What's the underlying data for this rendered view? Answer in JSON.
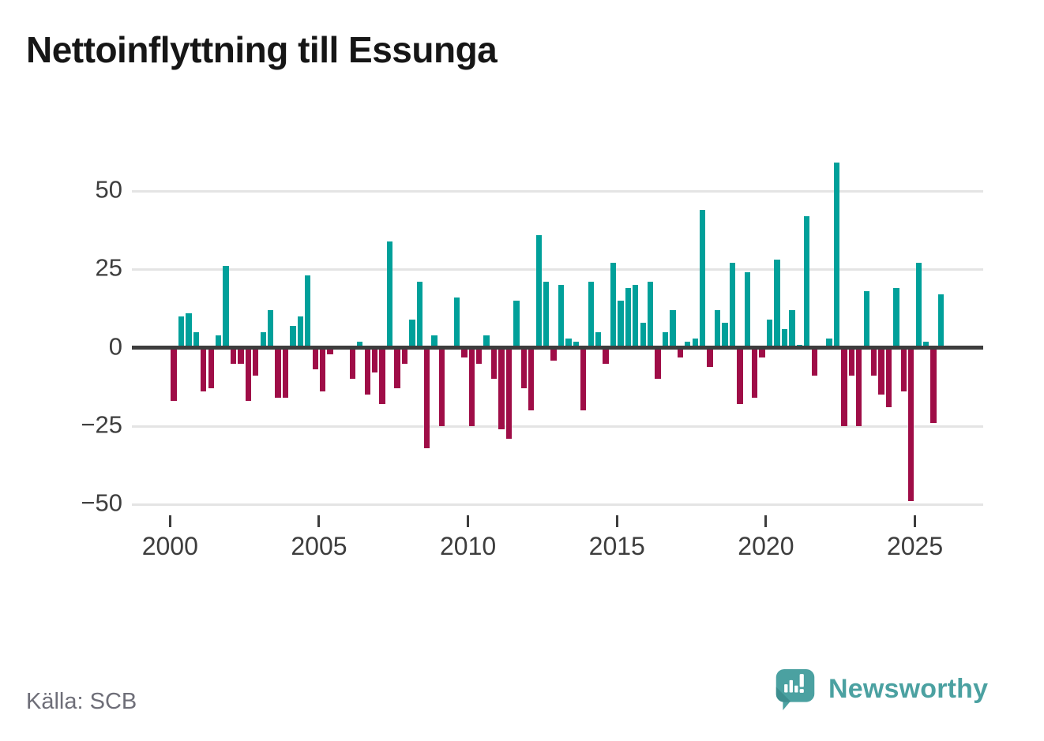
{
  "title": "Nettoinflyttning till Essunga",
  "source": "Källa: SCB",
  "branding": {
    "logo_text": "Newsworthy"
  },
  "colors": {
    "positive": "#00a09a",
    "negative": "#9f0d47",
    "grid": "#e4e4e4",
    "zero_line": "#3d3d3d",
    "axis_text": "#3d3d3d",
    "title_text": "#161616",
    "source_text": "#6e6e78",
    "brand_teal": "#4ba1a1",
    "brand_teal_dark": "#3d8e8f"
  },
  "chart_data": {
    "type": "bar",
    "title": "Nettoinflyttning till Essunga",
    "xlabel": "",
    "ylabel": "",
    "frequency": "quarterly",
    "start_period": "2000-Q1",
    "end_period": "2025-Q4",
    "x_tick_years": [
      2000,
      2005,
      2010,
      2015,
      2020,
      2025
    ],
    "x_tick_labels": [
      "2000",
      "2005",
      "2010",
      "2015",
      "2020",
      "2025"
    ],
    "y_ticks": [
      50,
      25,
      0,
      -25,
      -50
    ],
    "y_tick_labels": [
      "50",
      "25",
      "0",
      "−25",
      "−50"
    ],
    "ylim": [
      -55,
      62
    ],
    "grid": "horizontal",
    "legend": "none",
    "series": [
      {
        "name": "Nettoinflyttning",
        "values": [
          -17,
          10,
          11,
          5,
          -14,
          -13,
          4,
          26,
          -5,
          -5,
          -17,
          -9,
          5,
          12,
          -16,
          -16,
          7,
          10,
          23,
          -7,
          -14,
          -2,
          0,
          0,
          -10,
          2,
          -15,
          -8,
          -18,
          34,
          -13,
          -5,
          9,
          21,
          -32,
          4,
          -25,
          0,
          16,
          -3,
          -25,
          -5,
          4,
          -10,
          -26,
          -29,
          15,
          -13,
          -20,
          36,
          21,
          -4,
          20,
          3,
          2,
          -20,
          21,
          5,
          -5,
          27,
          15,
          19,
          20,
          8,
          21,
          -10,
          5,
          12,
          -3,
          2,
          3,
          44,
          -6,
          12,
          8,
          27,
          -18,
          24,
          -16,
          -3,
          9,
          28,
          6,
          12,
          1,
          42,
          -9,
          0,
          3,
          59,
          -25,
          -9,
          -25,
          18,
          -9,
          -15,
          -19,
          19,
          -14,
          -49,
          27,
          2,
          -24,
          17
        ]
      }
    ]
  }
}
